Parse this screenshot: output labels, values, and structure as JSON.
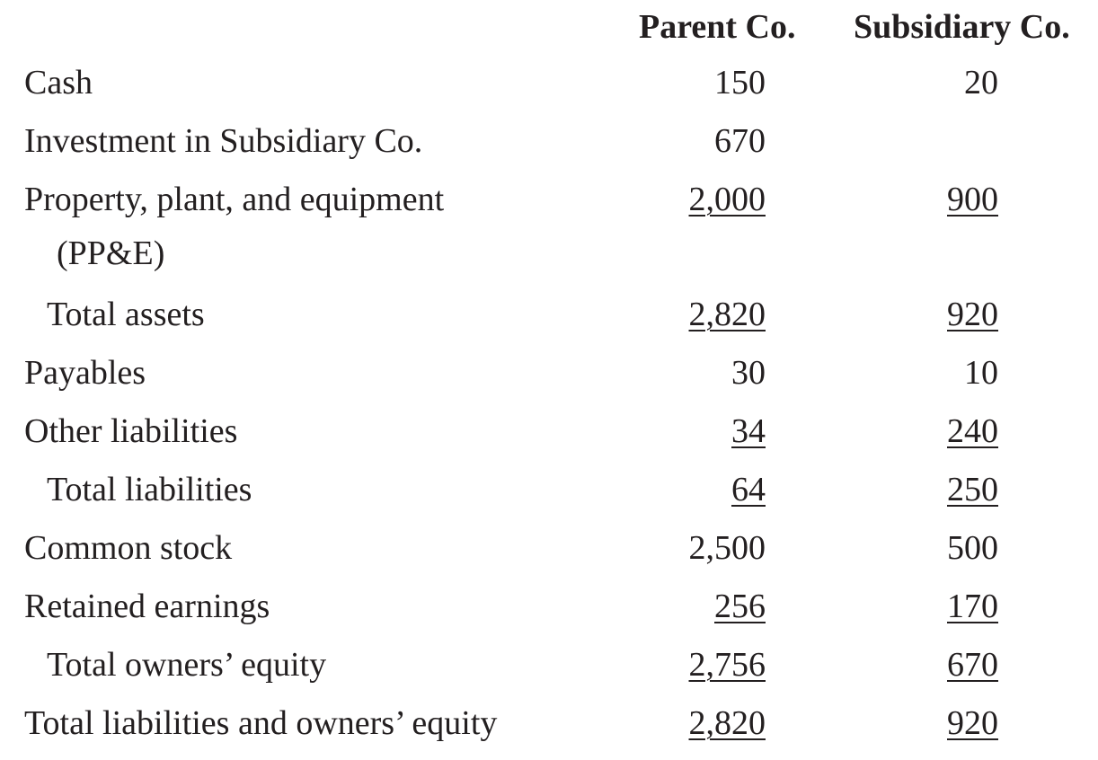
{
  "headers": {
    "parent": "Parent Co.",
    "subsidiary": "Subsidiary Co."
  },
  "rows": [
    {
      "label": "Cash",
      "parent": "150",
      "subsidiary": "20"
    },
    {
      "label": "Investment in Subsidiary Co.",
      "parent": "670",
      "subsidiary": ""
    },
    {
      "label": "Property, plant, and equipment",
      "label_cont": "(PP&E)",
      "parent": "2,000",
      "subsidiary": "900"
    },
    {
      "label": "Total assets",
      "parent": "2,820",
      "subsidiary": "920"
    },
    {
      "label": "Payables",
      "parent": "30",
      "subsidiary": "10"
    },
    {
      "label": "Other liabilities",
      "parent": "34",
      "subsidiary": "240"
    },
    {
      "label": "Total liabilities",
      "parent": "64",
      "subsidiary": "250"
    },
    {
      "label": "Common stock",
      "parent": "2,500",
      "subsidiary": "500"
    },
    {
      "label": "Retained earnings",
      "parent": "256",
      "subsidiary": "170"
    },
    {
      "label": "Total owners’ equity",
      "parent": "2,756",
      "subsidiary": "670"
    },
    {
      "label": "Total liabilities and owners’ equity",
      "parent": "2,820",
      "subsidiary": "920"
    }
  ]
}
